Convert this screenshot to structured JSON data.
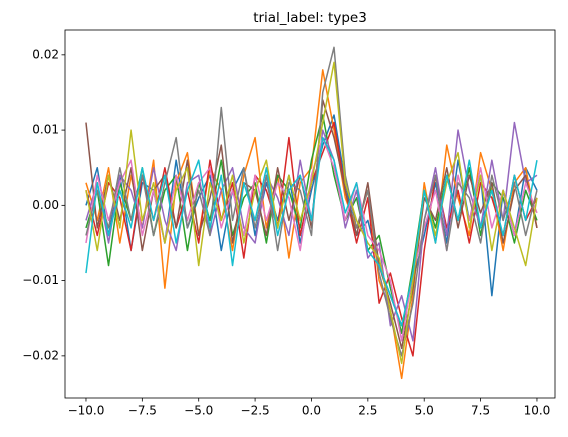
{
  "chart_data": {
    "type": "line",
    "title": "trial_label: type3",
    "x": [
      -10,
      -9.5,
      -9,
      -8.5,
      -8,
      -7.5,
      -7,
      -6.5,
      -6,
      -5.5,
      -5,
      -4.5,
      -4,
      -3.5,
      -3,
      -2.5,
      -2,
      -1.5,
      -1,
      -0.5,
      0,
      0.5,
      1,
      1.5,
      2,
      2.5,
      3,
      3.5,
      4,
      4.5,
      5,
      5.5,
      6,
      6.5,
      7,
      7.5,
      8,
      8.5,
      9,
      9.5,
      10
    ],
    "series": [
      {
        "color": "#1f77b4",
        "values": [
          0.0,
          0.005,
          -0.004,
          0.004,
          -0.006,
          0.003,
          0.002,
          -0.005,
          0.006,
          -0.003,
          0.001,
          0.004,
          -0.006,
          0.002,
          0.005,
          -0.004,
          0.003,
          -0.002,
          0.004,
          -0.005,
          0.002,
          0.008,
          0.012,
          0.003,
          -0.004,
          -0.002,
          -0.008,
          -0.012,
          -0.016,
          -0.01,
          -0.004,
          0.003,
          -0.005,
          0.006,
          -0.002,
          0.004,
          -0.012,
          0.002,
          -0.004,
          0.005,
          0.002
        ]
      },
      {
        "color": "#ff7f0e",
        "values": [
          0.003,
          -0.002,
          0.005,
          -0.005,
          0.004,
          -0.003,
          0.006,
          -0.011,
          0.003,
          0.007,
          -0.004,
          0.005,
          0.002,
          -0.006,
          0.004,
          0.009,
          -0.003,
          0.004,
          -0.007,
          0.003,
          0.005,
          0.018,
          0.01,
          0.001,
          -0.003,
          0.002,
          -0.01,
          -0.014,
          -0.023,
          -0.012,
          0.003,
          -0.005,
          0.008,
          0.001,
          -0.004,
          0.007,
          0.002,
          -0.006,
          0.003,
          0.005,
          -0.003
        ]
      },
      {
        "color": "#2ca02c",
        "values": [
          -0.003,
          0.002,
          -0.008,
          0.003,
          -0.002,
          0.005,
          -0.004,
          0.002,
          0.004,
          -0.006,
          0.003,
          -0.002,
          0.006,
          -0.004,
          0.001,
          0.003,
          -0.005,
          0.004,
          0.002,
          -0.003,
          0.006,
          0.012,
          0.004,
          -0.002,
          0.001,
          -0.006,
          -0.004,
          -0.011,
          -0.017,
          -0.008,
          0.002,
          -0.003,
          0.004,
          -0.002,
          0.005,
          -0.004,
          0.003,
          0.001,
          -0.005,
          0.002,
          -0.002
        ]
      },
      {
        "color": "#d62728",
        "values": [
          0.002,
          -0.004,
          0.003,
          0.001,
          -0.006,
          0.004,
          -0.002,
          0.005,
          -0.003,
          0.002,
          -0.005,
          0.006,
          -0.002,
          0.003,
          -0.007,
          0.004,
          0.002,
          -0.003,
          0.009,
          -0.004,
          0.003,
          0.007,
          0.011,
          0.002,
          -0.005,
          0.001,
          -0.013,
          -0.009,
          -0.015,
          -0.02,
          -0.006,
          0.004,
          -0.003,
          0.002,
          -0.005,
          0.003,
          0.001,
          -0.004,
          0.004,
          -0.002,
          0.001
        ]
      },
      {
        "color": "#9467bd",
        "values": [
          -0.002,
          0.003,
          -0.005,
          0.004,
          0.002,
          -0.003,
          0.005,
          -0.002,
          -0.006,
          0.003,
          0.004,
          -0.004,
          0.002,
          0.005,
          -0.003,
          -0.005,
          0.004,
          0.001,
          -0.004,
          0.006,
          -0.002,
          0.01,
          0.006,
          -0.003,
          0.002,
          -0.007,
          -0.005,
          -0.016,
          -0.012,
          -0.018,
          -0.002,
          0.005,
          -0.004,
          0.01,
          0.002,
          -0.003,
          0.006,
          -0.002,
          0.011,
          0.003,
          0.004
        ]
      },
      {
        "color": "#8c564b",
        "values": [
          0.011,
          -0.003,
          0.004,
          -0.002,
          0.005,
          -0.006,
          0.002,
          0.004,
          -0.003,
          0.006,
          -0.004,
          0.001,
          0.008,
          -0.005,
          0.003,
          0.002,
          -0.004,
          0.005,
          -0.002,
          0.004,
          -0.003,
          0.014,
          0.009,
          0.002,
          -0.004,
          0.003,
          -0.008,
          -0.013,
          -0.019,
          -0.011,
          0.001,
          -0.002,
          0.005,
          -0.003,
          0.004,
          -0.001,
          0.003,
          -0.005,
          0.002,
          0.004,
          -0.003
        ]
      },
      {
        "color": "#e377c2",
        "values": [
          -0.005,
          0.004,
          -0.002,
          0.003,
          0.006,
          -0.004,
          0.002,
          -0.005,
          0.004,
          -0.002,
          0.003,
          0.005,
          -0.003,
          0.002,
          -0.004,
          0.004,
          -0.002,
          0.003,
          0.001,
          -0.006,
          0.004,
          0.009,
          0.005,
          -0.002,
          0.003,
          -0.004,
          -0.006,
          -0.01,
          -0.018,
          -0.009,
          -0.003,
          0.002,
          -0.006,
          0.004,
          -0.002,
          0.005,
          -0.003,
          0.002,
          -0.004,
          0.003,
          -0.001
        ]
      },
      {
        "color": "#7f7f7f",
        "values": [
          -0.004,
          0.002,
          -0.003,
          0.005,
          -0.002,
          0.004,
          -0.004,
          0.003,
          0.009,
          -0.003,
          0.002,
          -0.004,
          0.013,
          -0.002,
          0.005,
          -0.003,
          0.004,
          -0.006,
          0.003,
          0.002,
          -0.004,
          0.015,
          0.021,
          0.004,
          -0.003,
          0.002,
          -0.009,
          -0.015,
          -0.02,
          -0.013,
          -0.002,
          0.004,
          -0.006,
          0.003,
          0.001,
          -0.005,
          0.004,
          -0.002,
          0.003,
          -0.004,
          0.002
        ]
      },
      {
        "color": "#bcbd22",
        "values": [
          0.002,
          -0.006,
          0.004,
          -0.003,
          0.01,
          -0.002,
          0.003,
          -0.005,
          0.002,
          0.005,
          -0.008,
          0.003,
          -0.002,
          0.004,
          -0.005,
          0.002,
          0.006,
          -0.003,
          0.004,
          -0.002,
          0.003,
          0.011,
          0.019,
          0.003,
          -0.002,
          -0.005,
          -0.007,
          -0.014,
          -0.021,
          -0.01,
          0.002,
          -0.004,
          0.003,
          0.007,
          -0.003,
          0.004,
          -0.006,
          0.002,
          -0.003,
          -0.008,
          0.001
        ]
      },
      {
        "color": "#17becf",
        "values": [
          -0.009,
          0.003,
          -0.004,
          0.002,
          -0.003,
          0.005,
          -0.002,
          0.004,
          -0.005,
          0.002,
          0.006,
          -0.003,
          0.004,
          -0.008,
          0.003,
          -0.002,
          0.005,
          -0.004,
          0.002,
          0.004,
          -0.002,
          0.009,
          0.006,
          -0.001,
          0.003,
          -0.006,
          -0.008,
          -0.012,
          -0.016,
          -0.009,
          0.002,
          -0.005,
          0.004,
          -0.002,
          0.006,
          -0.003,
          0.002,
          -0.004,
          0.004,
          -0.002,
          0.006
        ]
      }
    ],
    "xlim": [
      -10.93,
      10.8
    ],
    "xticks": [
      {
        "value": -10,
        "label": "−10.0"
      },
      {
        "value": -7.5,
        "label": "−7.5"
      },
      {
        "value": -5,
        "label": "−5.0"
      },
      {
        "value": -2.5,
        "label": "−2.5"
      },
      {
        "value": 0,
        "label": "0.0"
      },
      {
        "value": 2.5,
        "label": "2.5"
      },
      {
        "value": 5,
        "label": "5.0"
      },
      {
        "value": 7.5,
        "label": "7.5"
      },
      {
        "value": 10,
        "label": "10.0"
      }
    ],
    "ylim": [
      -0.0256,
      0.0233
    ],
    "yticks": [
      {
        "value": -0.02,
        "label": "−0.02"
      },
      {
        "value": -0.01,
        "label": "−0.01"
      },
      {
        "value": 0,
        "label": "0.00"
      },
      {
        "value": 0.01,
        "label": "0.01"
      },
      {
        "value": 0.02,
        "label": "0.02"
      }
    ],
    "grid": false
  }
}
